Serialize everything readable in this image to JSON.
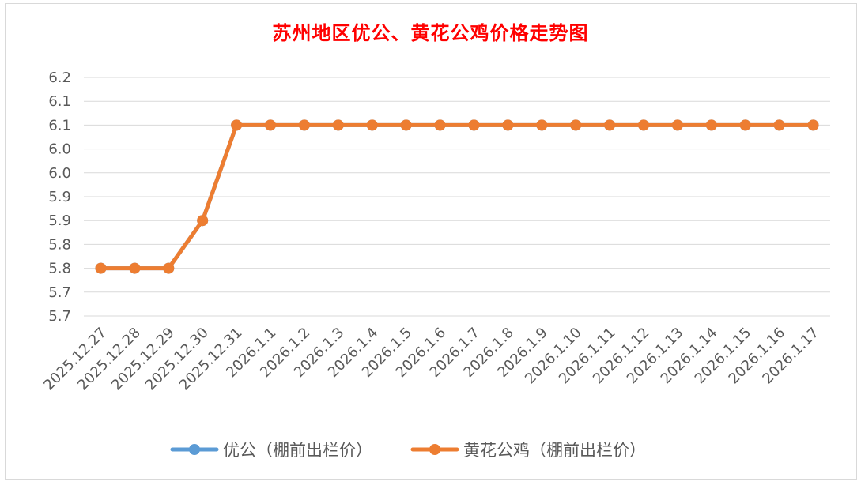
{
  "chart_data": {
    "type": "line",
    "title": "苏州地区优公、黄花公鸡价格走势图",
    "categories": [
      "2025.12.27",
      "2025.12.28",
      "2025.12.29",
      "2025.12.30",
      "2025.12.31",
      "2026.1.1",
      "2026.1.2",
      "2026.1.3",
      "2026.1.4",
      "2026.1.5",
      "2026.1.6",
      "2026.1.7",
      "2026.1.8",
      "2026.1.9",
      "2026.1.10",
      "2026.1.11",
      "2026.1.12",
      "2026.1.13",
      "2026.1.14",
      "2026.1.15",
      "2026.1.16",
      "2026.1.17"
    ],
    "y_tick_labels": [
      "6.2",
      "6.1",
      "6.1",
      "6.0",
      "6.0",
      "5.9",
      "5.9",
      "5.8",
      "5.8",
      "5.7",
      "5.7"
    ],
    "ylim": [
      5.65,
      6.15
    ],
    "grid": true,
    "legend_position": "bottom",
    "series": [
      {
        "name": "优公（棚前出栏价）",
        "color": "#5b9bd5",
        "values": [
          5.75,
          5.75,
          5.75,
          5.85,
          6.05,
          6.05,
          6.05,
          6.05,
          6.05,
          6.05,
          6.05,
          6.05,
          6.05,
          6.05,
          6.05,
          6.05,
          6.05,
          6.05,
          6.05,
          6.05,
          6.05,
          6.05
        ]
      },
      {
        "name": "黄花公鸡（棚前出栏价）",
        "color": "#ed7d31",
        "values": [
          5.75,
          5.75,
          5.75,
          5.85,
          6.05,
          6.05,
          6.05,
          6.05,
          6.05,
          6.05,
          6.05,
          6.05,
          6.05,
          6.05,
          6.05,
          6.05,
          6.05,
          6.05,
          6.05,
          6.05,
          6.05,
          6.05
        ]
      }
    ]
  }
}
